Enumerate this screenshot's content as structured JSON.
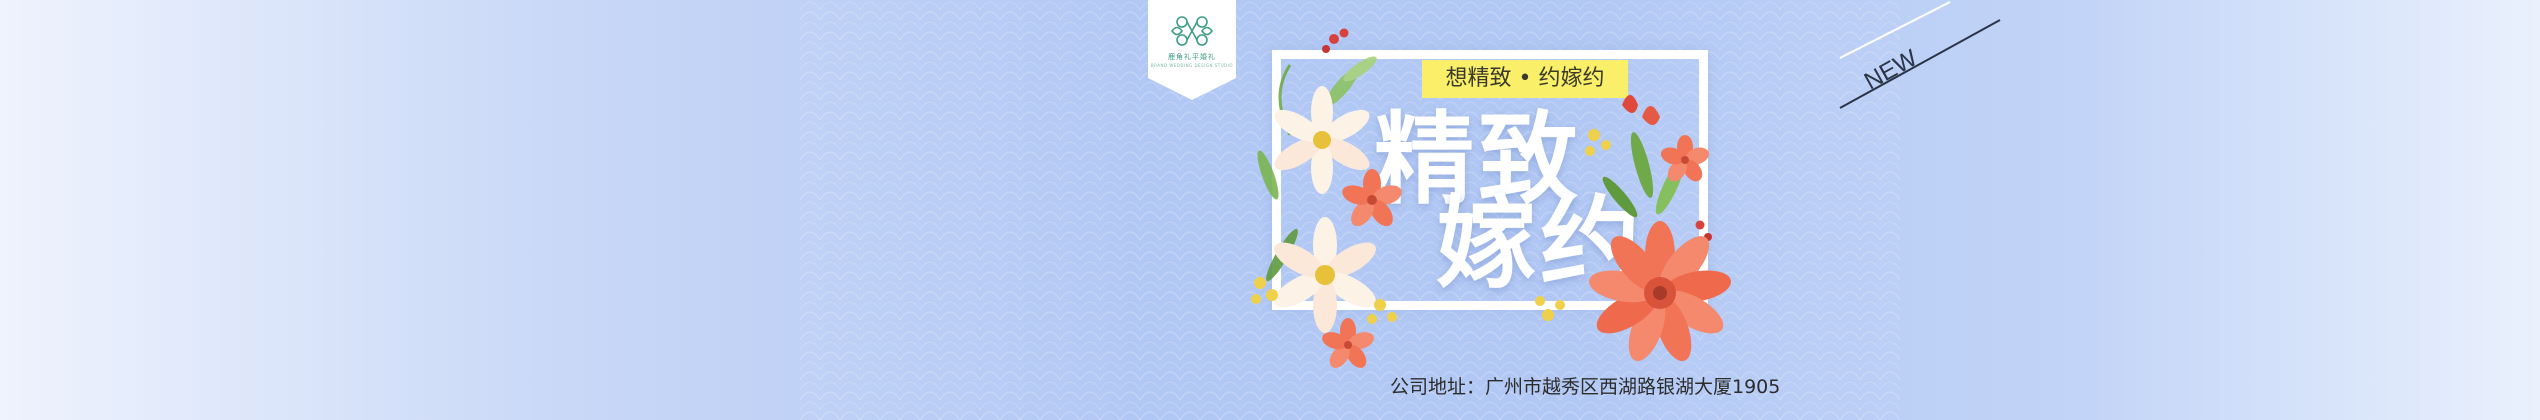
{
  "logo": {
    "name": "鹿角礼平婚礼",
    "sub": "BRAND WEDDING DESIGN STUDIO"
  },
  "tagline": "想精致 • 约嫁约",
  "headline": {
    "line1": "精致",
    "line2": "嫁约"
  },
  "badge": "NEW",
  "address": "公司地址：广州市越秀区西湖路银湖大厦1905",
  "colors": {
    "background": "#b2c8f4",
    "tag_bg": "#f9ef68",
    "logo_green": "#3e9c84",
    "flower_orange": "#f27456",
    "flower_cream": "#fdf2e6",
    "leaf_green": "#6fa94a"
  }
}
